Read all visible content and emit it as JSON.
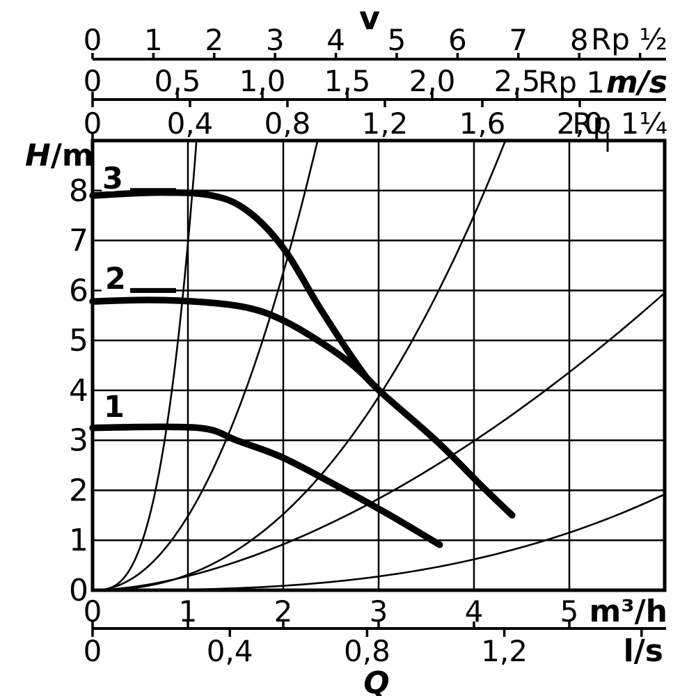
{
  "chart_data": {
    "type": "line",
    "description": "Pump characteristic curves H over Q with velocity reference scales",
    "y_axis": {
      "label_italic": "H",
      "label_rest": "/m",
      "ticks": [
        "0",
        "1",
        "2",
        "3",
        "4",
        "5",
        "6",
        "7",
        "8"
      ],
      "range": [
        0,
        9
      ]
    },
    "x_axes": [
      {
        "name": "velocity-rp-half",
        "title": "v",
        "ticks": [
          "0",
          "1",
          "2",
          "3",
          "4",
          "5",
          "6",
          "7",
          "8"
        ],
        "suffix": "Rp ½"
      },
      {
        "name": "velocity-rp-1",
        "ticks": [
          "0",
          "0,5",
          "1,0",
          "1,5",
          "2,0",
          "2,5"
        ],
        "suffix": "Rp 1",
        "unit": "m/s"
      },
      {
        "name": "velocity-rp-1-quarter",
        "ticks": [
          "0",
          "0,4",
          "0,8",
          "1,2",
          "1,6",
          "2,0"
        ],
        "suffix": "Rp 1¼"
      },
      {
        "name": "flow-m3h",
        "ticks": [
          "0",
          "1",
          "2",
          "3",
          "4",
          "5"
        ],
        "unit": "m³/h"
      },
      {
        "name": "flow-ls",
        "ticks": [
          "0",
          "0,4",
          "0,8",
          "1,2"
        ],
        "unit": "l/s",
        "axis_label": "Q"
      }
    ],
    "x_range_m3h": [
      0,
      6
    ],
    "grid": true,
    "series": [
      {
        "name": "3",
        "points": [
          [
            0,
            7.9
          ],
          [
            0.7,
            7.96
          ],
          [
            1.25,
            7.9
          ],
          [
            1.62,
            7.6
          ],
          [
            2.0,
            6.85
          ],
          [
            2.4,
            5.6
          ],
          [
            2.8,
            4.45
          ],
          [
            3.01,
            3.99
          ],
          [
            3.6,
            3.0
          ],
          [
            4.1,
            2.05
          ],
          [
            4.4,
            1.5
          ]
        ]
      },
      {
        "name": "2",
        "points": [
          [
            0,
            5.78
          ],
          [
            0.6,
            5.81
          ],
          [
            1.2,
            5.76
          ],
          [
            1.66,
            5.64
          ],
          [
            2.02,
            5.38
          ],
          [
            2.46,
            4.88
          ],
          [
            2.75,
            4.47
          ],
          [
            3.01,
            3.99
          ]
        ]
      },
      {
        "name": "1",
        "points": [
          [
            0,
            3.25
          ],
          [
            0.78,
            3.27
          ],
          [
            1.22,
            3.22
          ],
          [
            1.51,
            3.0
          ],
          [
            2.0,
            2.65
          ],
          [
            2.63,
            2.02
          ],
          [
            3.12,
            1.5
          ],
          [
            3.64,
            0.91
          ]
        ]
      }
    ],
    "reference_curves": [
      {
        "q_end": 1.09,
        "h_end": 9.0,
        "exp": 3.0
      },
      {
        "q_end": 2.36,
        "h_end": 9.0,
        "exp": 2.1
      },
      {
        "q_end": 4.33,
        "h_end": 9.0,
        "exp": 2.3
      },
      {
        "q_end": 6.0,
        "h_end": 5.95,
        "exp": 1.7
      },
      {
        "q_end": 6.0,
        "h_end": 1.92,
        "exp": 2.8
      }
    ],
    "colors": {
      "ink": "#000000",
      "background": "#ffffff"
    }
  }
}
